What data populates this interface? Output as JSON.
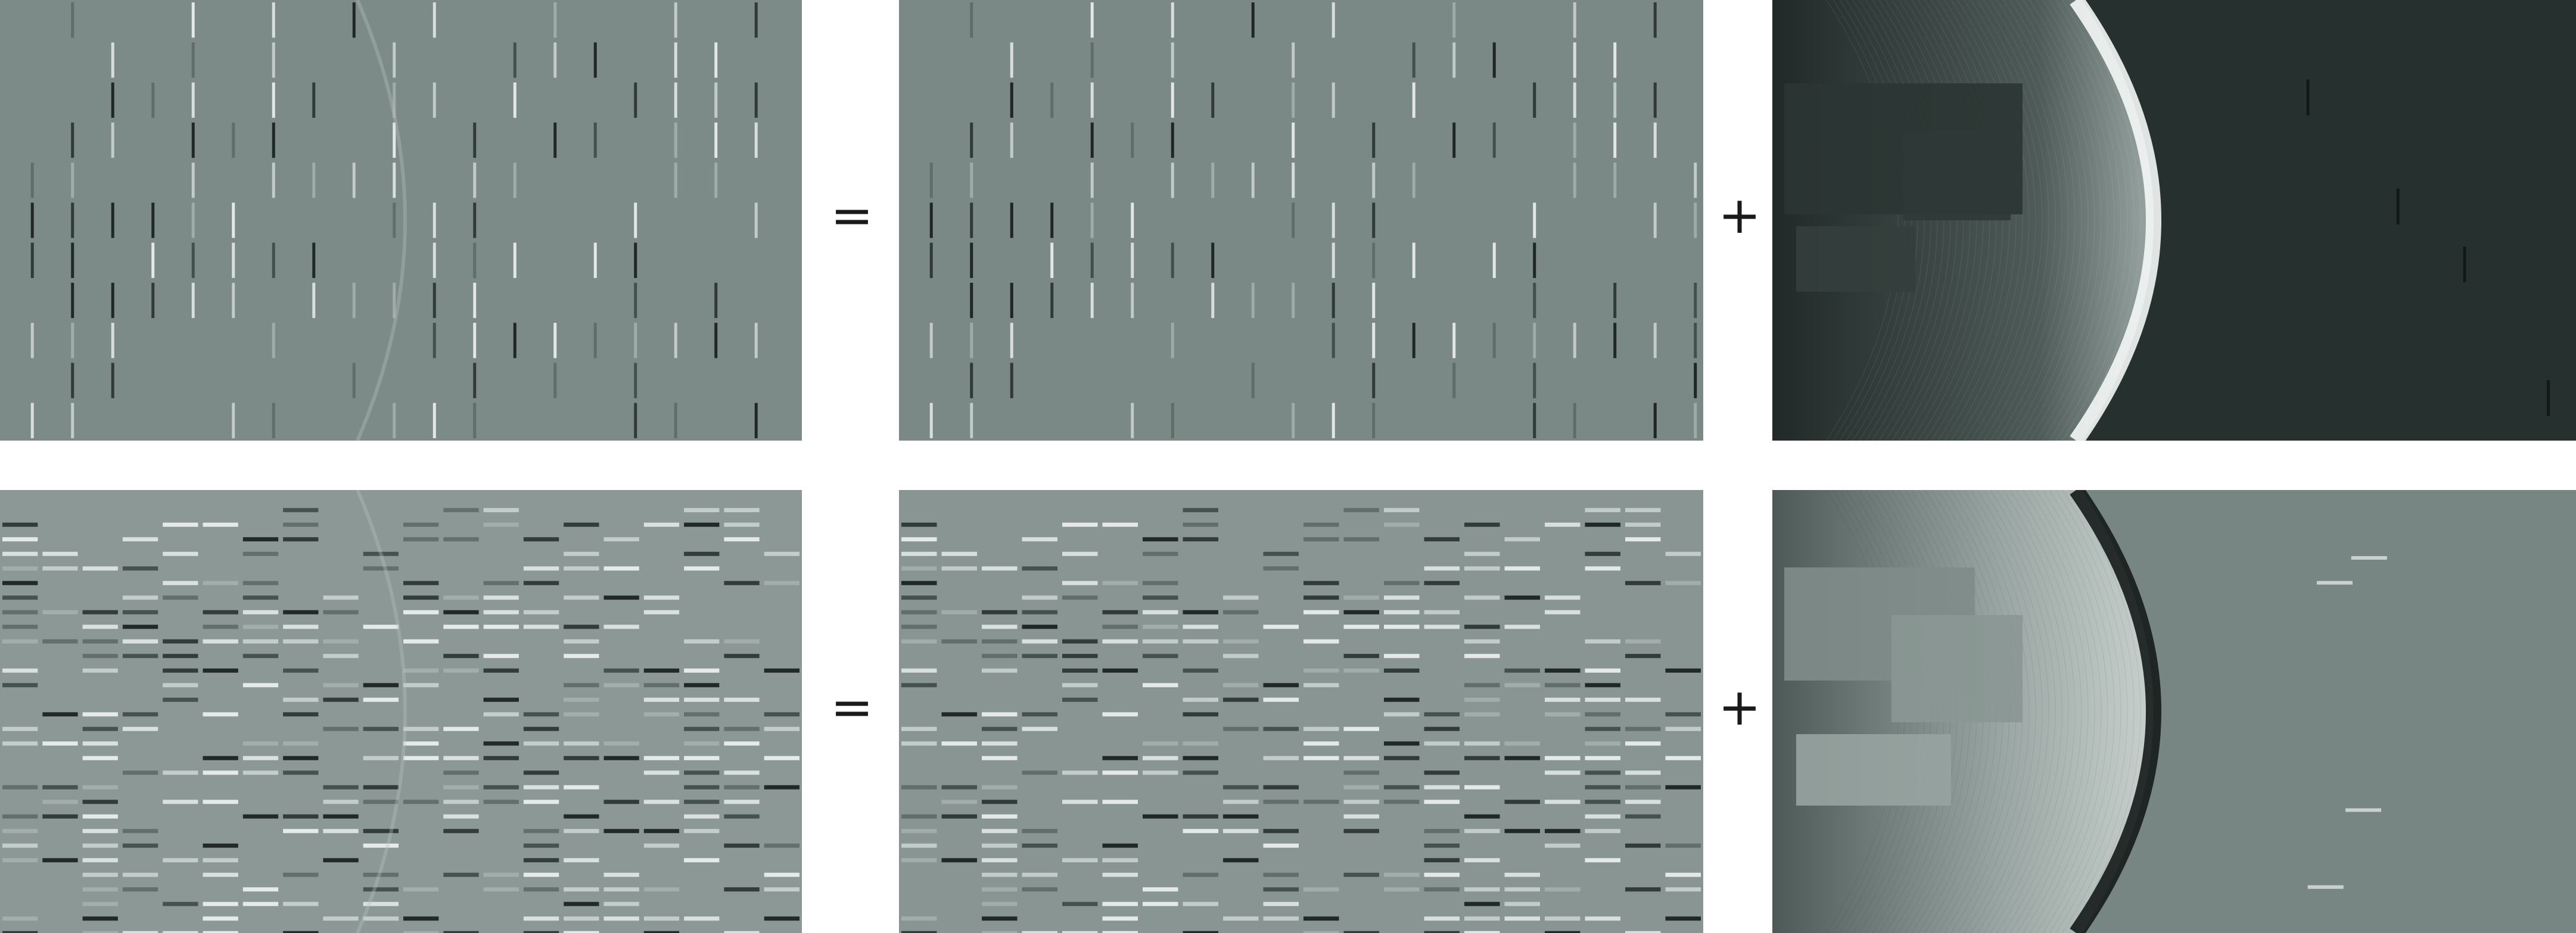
{
  "figure": {
    "rows": [
      {
        "operators": {
          "equals": "=",
          "plus": "+"
        },
        "panels": [
          {
            "kind": "vertical-stripes",
            "base": "#7d8b88",
            "halo": true
          },
          {
            "kind": "vertical-stripes",
            "base": "#7a8986",
            "halo": false
          },
          {
            "kind": "dark-arc",
            "base": "#26302f"
          }
        ]
      },
      {
        "operators": {
          "equals": "=",
          "plus": "+"
        },
        "panels": [
          {
            "kind": "horizontal-stripes",
            "base": "#8b9895",
            "halo": true
          },
          {
            "kind": "horizontal-stripes",
            "base": "#889592",
            "halo": false
          },
          {
            "kind": "light-arc",
            "base": "#788683"
          }
        ]
      }
    ]
  }
}
